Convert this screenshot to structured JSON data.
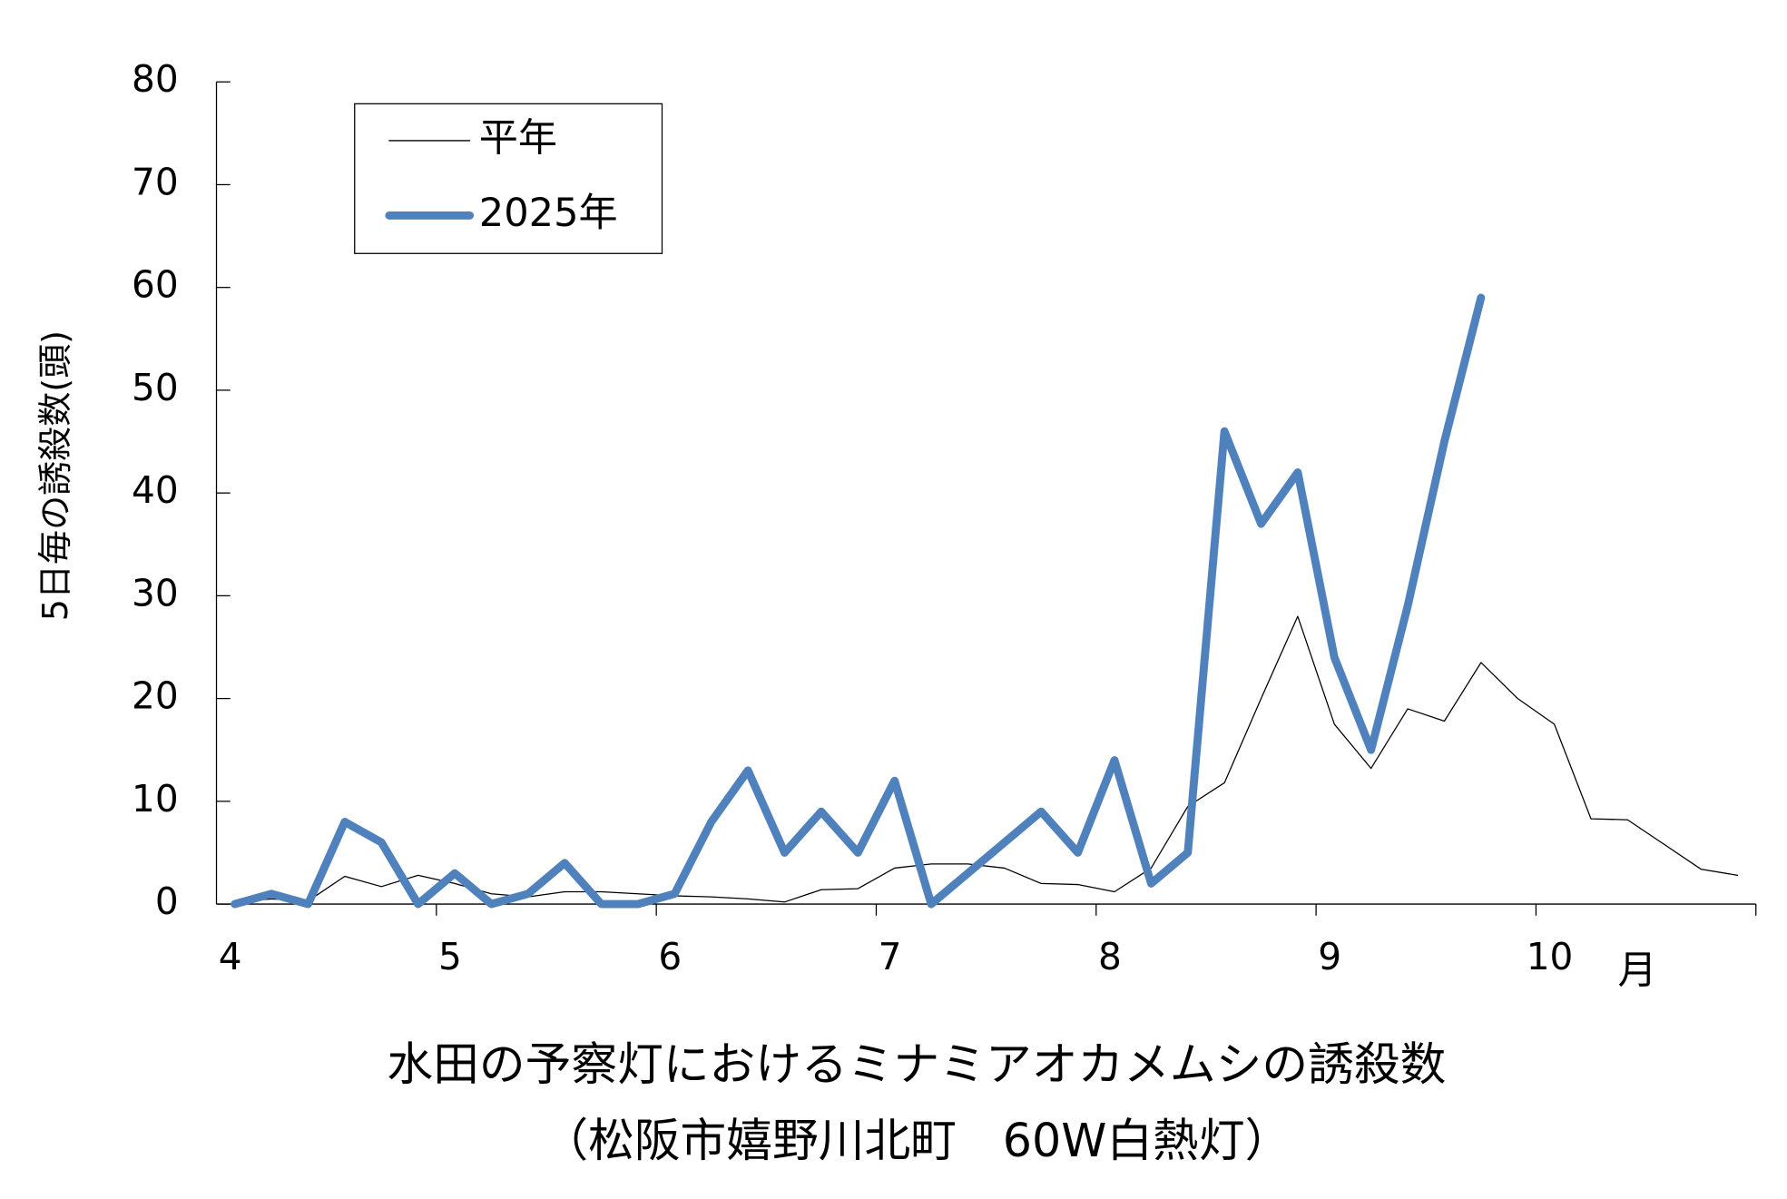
{
  "chart_data": {
    "type": "line",
    "title": "水田の予察灯におけるミナミアオカメムシの誘殺数",
    "subtitle": "（松阪市嬉野川北町　60W白熱灯）",
    "ylabel": "5日毎の誘殺数(頭)",
    "xlabel": "月",
    "categories": [
      "4",
      null,
      null,
      null,
      null,
      null,
      "5",
      null,
      null,
      null,
      null,
      null,
      "6",
      null,
      null,
      null,
      null,
      null,
      "7",
      null,
      null,
      null,
      null,
      null,
      "8",
      null,
      null,
      null,
      null,
      null,
      "9",
      null,
      null,
      null,
      null,
      null,
      "10",
      null,
      null,
      null,
      null,
      null
    ],
    "series": [
      {
        "name": "平年",
        "color": "#000000",
        "width": 1,
        "values": [
          0.2,
          0.5,
          0.3,
          2.7,
          1.7,
          2.8,
          2.0,
          1.0,
          0.7,
          1.2,
          1.2,
          1.0,
          0.8,
          0.7,
          0.5,
          0.2,
          1.4,
          1.5,
          3.5,
          3.9,
          3.9,
          3.5,
          2.0,
          1.9,
          1.2,
          3.5,
          9.5,
          11.8,
          20,
          28,
          17.5,
          13.2,
          19,
          17.8,
          23.5,
          20,
          17.5,
          8.3,
          8.2,
          5.8,
          3.4,
          2.8
        ]
      },
      {
        "name": "2025年",
        "color": "#4f81bd",
        "width": 7,
        "values": [
          0,
          1,
          0,
          8,
          6,
          0,
          3,
          0,
          1,
          4,
          0,
          0,
          1,
          8,
          13,
          5,
          9,
          5,
          12,
          0,
          3,
          6,
          9,
          5,
          14,
          2,
          5,
          46,
          37,
          42,
          24,
          15,
          29,
          45,
          59,
          null,
          null,
          null,
          null,
          null,
          null,
          null
        ]
      }
    ],
    "ylim": [
      0,
      80
    ],
    "yticks": [
      0,
      10,
      20,
      30,
      40,
      50,
      60,
      70,
      80
    ],
    "legend": "top-left"
  }
}
